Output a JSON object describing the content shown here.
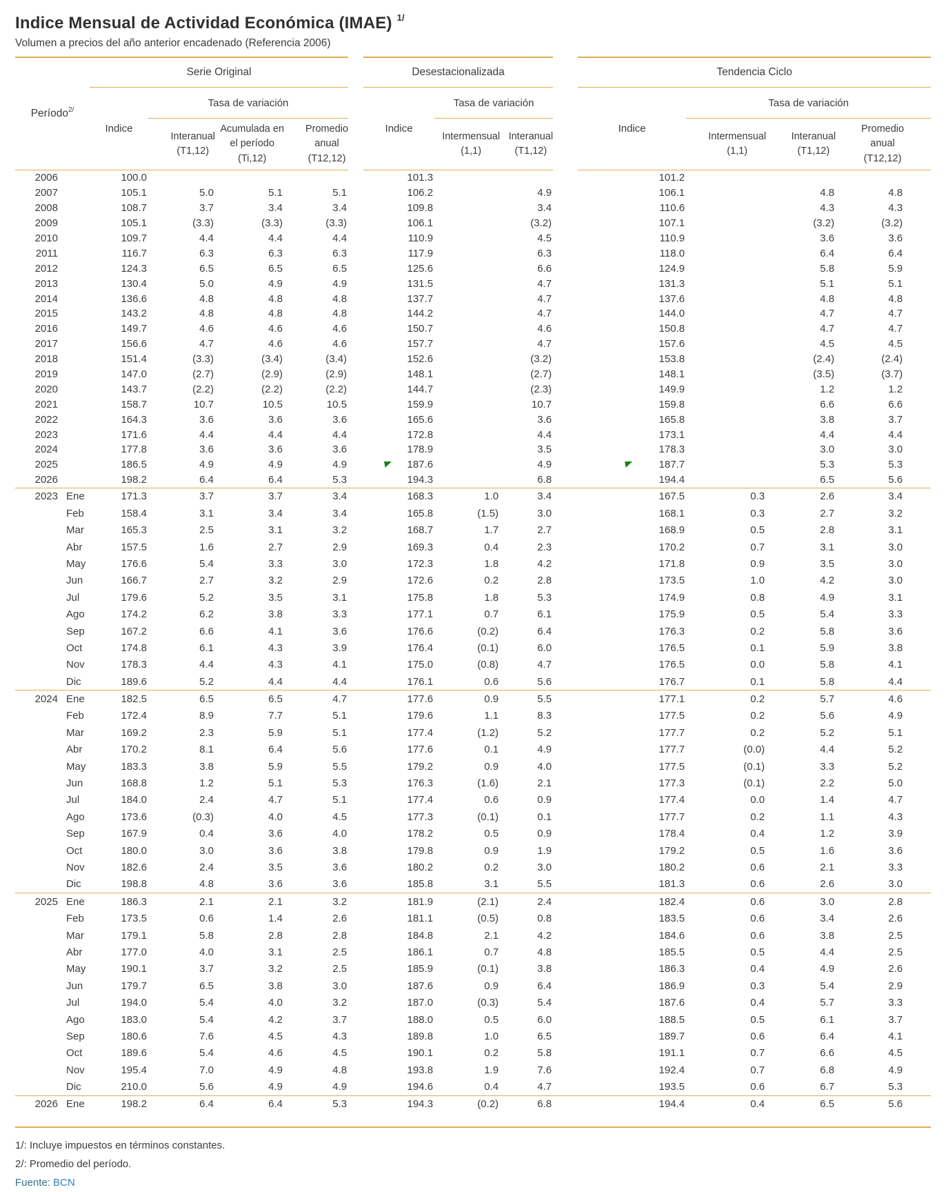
{
  "page": {
    "title": "Indice Mensual de Actividad Económica (IMAE)",
    "title_note": "1/",
    "subtitle": "Volumen a precios del año anterior encadenado (Referencia 2006)"
  },
  "colors": {
    "rule_gold": "#dfae4f",
    "text": "#3c3c3c",
    "flag_green": "#178217",
    "source_label_blue": "#31708f",
    "source_link_blue": "#2e86c1"
  },
  "table": {
    "period_header": {
      "label": "Período",
      "note": "2/"
    },
    "groups": [
      {
        "title": "Serie Original",
        "tasa": "Tasa de variación"
      },
      {
        "title": "Desestacionalizada",
        "tasa": "Tasa de variación"
      },
      {
        "title": "Tendencia Ciclo",
        "tasa": "Tasa de variación"
      }
    ],
    "columns": {
      "so_indice": "Indice",
      "so_interanual": "Interanual\n(T1,12)",
      "so_acumulada": "Acumulada en\nel período\n(Ti,12)",
      "so_promedio": "Promedio\nanual\n(T12,12)",
      "de_indice": "Indice",
      "de_intermensual": "Intermensual\n(1,1)",
      "de_interanual": "Interanual\n(T1,12)",
      "tc_indice": "Indice",
      "tc_intermensual": "Intermensual\n(1,1)",
      "tc_interanual": "Interanual\n(T1,12)",
      "tc_promedio": "Promedio\nanual\n(T12,12)"
    },
    "annual_rows": [
      {
        "year": "2006",
        "month": "",
        "values": [
          "100.0",
          "",
          "",
          "",
          "101.3",
          "",
          "",
          "101.2",
          "",
          "",
          ""
        ]
      },
      {
        "year": "2007",
        "month": "",
        "values": [
          "105.1",
          "5.0",
          "5.1",
          "5.1",
          "106.2",
          "",
          "4.9",
          "106.1",
          "",
          "4.8",
          "4.8"
        ]
      },
      {
        "year": "2008",
        "month": "",
        "values": [
          "108.7",
          "3.7",
          "3.4",
          "3.4",
          "109.8",
          "",
          "3.4",
          "110.6",
          "",
          "4.3",
          "4.3"
        ]
      },
      {
        "year": "2009",
        "month": "",
        "values": [
          "105.1",
          "(3.3)",
          "(3.3)",
          "(3.3)",
          "106.1",
          "",
          "(3.2)",
          "107.1",
          "",
          "(3.2)",
          "(3.2)"
        ]
      },
      {
        "year": "2010",
        "month": "",
        "values": [
          "109.7",
          "4.4",
          "4.4",
          "4.4",
          "110.9",
          "",
          "4.5",
          "110.9",
          "",
          "3.6",
          "3.6"
        ]
      },
      {
        "year": "2011",
        "month": "",
        "values": [
          "116.7",
          "6.3",
          "6.3",
          "6.3",
          "117.9",
          "",
          "6.3",
          "118.0",
          "",
          "6.4",
          "6.4"
        ]
      },
      {
        "year": "2012",
        "month": "",
        "values": [
          "124.3",
          "6.5",
          "6.5",
          "6.5",
          "125.6",
          "",
          "6.6",
          "124.9",
          "",
          "5.8",
          "5.9"
        ]
      },
      {
        "year": "2013",
        "month": "",
        "values": [
          "130.4",
          "5.0",
          "4.9",
          "4.9",
          "131.5",
          "",
          "4.7",
          "131.3",
          "",
          "5.1",
          "5.1"
        ]
      },
      {
        "year": "2014",
        "month": "",
        "values": [
          "136.6",
          "4.8",
          "4.8",
          "4.8",
          "137.7",
          "",
          "4.7",
          "137.6",
          "",
          "4.8",
          "4.8"
        ]
      },
      {
        "year": "2015",
        "month": "",
        "values": [
          "143.2",
          "4.8",
          "4.8",
          "4.8",
          "144.2",
          "",
          "4.7",
          "144.0",
          "",
          "4.7",
          "4.7"
        ]
      },
      {
        "year": "2016",
        "month": "",
        "values": [
          "149.7",
          "4.6",
          "4.6",
          "4.6",
          "150.7",
          "",
          "4.6",
          "150.8",
          "",
          "4.7",
          "4.7"
        ]
      },
      {
        "year": "2017",
        "month": "",
        "values": [
          "156.6",
          "4.7",
          "4.6",
          "4.6",
          "157.7",
          "",
          "4.7",
          "157.6",
          "",
          "4.5",
          "4.5"
        ]
      },
      {
        "year": "2018",
        "month": "",
        "values": [
          "151.4",
          "(3.3)",
          "(3.4)",
          "(3.4)",
          "152.6",
          "",
          "(3.2)",
          "153.8",
          "",
          "(2.4)",
          "(2.4)"
        ]
      },
      {
        "year": "2019",
        "month": "",
        "values": [
          "147.0",
          "(2.7)",
          "(2.9)",
          "(2.9)",
          "148.1",
          "",
          "(2.7)",
          "148.1",
          "",
          "(3.5)",
          "(3.7)"
        ]
      },
      {
        "year": "2020",
        "month": "",
        "values": [
          "143.7",
          "(2.2)",
          "(2.2)",
          "(2.2)",
          "144.7",
          "",
          "(2.3)",
          "149.9",
          "",
          "1.2",
          "1.2"
        ]
      },
      {
        "year": "2021",
        "month": "",
        "values": [
          "158.7",
          "10.7",
          "10.5",
          "10.5",
          "159.9",
          "",
          "10.7",
          "159.8",
          "",
          "6.6",
          "6.6"
        ]
      },
      {
        "year": "2022",
        "month": "",
        "values": [
          "164.3",
          "3.6",
          "3.6",
          "3.6",
          "165.6",
          "",
          "3.6",
          "165.8",
          "",
          "3.8",
          "3.7"
        ]
      },
      {
        "year": "2023",
        "month": "",
        "values": [
          "171.6",
          "4.4",
          "4.4",
          "4.4",
          "172.8",
          "",
          "4.4",
          "173.1",
          "",
          "4.4",
          "4.4"
        ]
      },
      {
        "year": "2024",
        "month": "",
        "values": [
          "177.8",
          "3.6",
          "3.6",
          "3.6",
          "178.9",
          "",
          "3.5",
          "178.3",
          "",
          "3.0",
          "3.0"
        ]
      },
      {
        "year": "2025",
        "month": "",
        "values": [
          "186.5",
          "4.9",
          "4.9",
          "4.9",
          "187.6",
          "",
          "4.9",
          "187.7",
          "",
          "5.3",
          "5.3"
        ],
        "flags": [
          4,
          7
        ]
      },
      {
        "year": "2026",
        "month": "",
        "values": [
          "198.2",
          "6.4",
          "6.4",
          "5.3",
          "194.3",
          "",
          "6.8",
          "194.4",
          "",
          "6.5",
          "5.6"
        ]
      }
    ],
    "monthly_rows": [
      {
        "year": "2023",
        "month": "Ene",
        "sep": true,
        "values": [
          "171.3",
          "3.7",
          "3.7",
          "3.4",
          "168.3",
          "1.0",
          "3.4",
          "167.5",
          "0.3",
          "2.6",
          "3.4"
        ]
      },
      {
        "year": "",
        "month": "Feb",
        "values": [
          "158.4",
          "3.1",
          "3.4",
          "3.4",
          "165.8",
          "(1.5)",
          "3.0",
          "168.1",
          "0.3",
          "2.7",
          "3.2"
        ]
      },
      {
        "year": "",
        "month": "Mar",
        "values": [
          "165.3",
          "2.5",
          "3.1",
          "3.2",
          "168.7",
          "1.7",
          "2.7",
          "168.9",
          "0.5",
          "2.8",
          "3.1"
        ]
      },
      {
        "year": "",
        "month": "Abr",
        "values": [
          "157.5",
          "1.6",
          "2.7",
          "2.9",
          "169.3",
          "0.4",
          "2.3",
          "170.2",
          "0.7",
          "3.1",
          "3.0"
        ]
      },
      {
        "year": "",
        "month": "May",
        "values": [
          "176.6",
          "5.4",
          "3.3",
          "3.0",
          "172.3",
          "1.8",
          "4.2",
          "171.8",
          "0.9",
          "3.5",
          "3.0"
        ]
      },
      {
        "year": "",
        "month": "Jun",
        "values": [
          "166.7",
          "2.7",
          "3.2",
          "2.9",
          "172.6",
          "0.2",
          "2.8",
          "173.5",
          "1.0",
          "4.2",
          "3.0"
        ]
      },
      {
        "year": "",
        "month": "Jul",
        "values": [
          "179.6",
          "5.2",
          "3.5",
          "3.1",
          "175.8",
          "1.8",
          "5.3",
          "174.9",
          "0.8",
          "4.9",
          "3.1"
        ]
      },
      {
        "year": "",
        "month": "Ago",
        "values": [
          "174.2",
          "6.2",
          "3.8",
          "3.3",
          "177.1",
          "0.7",
          "6.1",
          "175.9",
          "0.5",
          "5.4",
          "3.3"
        ]
      },
      {
        "year": "",
        "month": "Sep",
        "values": [
          "167.2",
          "6.6",
          "4.1",
          "3.6",
          "176.6",
          "(0.2)",
          "6.4",
          "176.3",
          "0.2",
          "5.8",
          "3.6"
        ]
      },
      {
        "year": "",
        "month": "Oct",
        "values": [
          "174.8",
          "6.1",
          "4.3",
          "3.9",
          "176.4",
          "(0.1)",
          "6.0",
          "176.5",
          "0.1",
          "5.9",
          "3.8"
        ]
      },
      {
        "year": "",
        "month": "Nov",
        "values": [
          "178.3",
          "4.4",
          "4.3",
          "4.1",
          "175.0",
          "(0.8)",
          "4.7",
          "176.5",
          "0.0",
          "5.8",
          "4.1"
        ]
      },
      {
        "year": "",
        "month": "Dic",
        "values": [
          "189.6",
          "5.2",
          "4.4",
          "4.4",
          "176.1",
          "0.6",
          "5.6",
          "176.7",
          "0.1",
          "5.8",
          "4.4"
        ]
      },
      {
        "year": "2024",
        "month": "Ene",
        "sep": true,
        "values": [
          "182.5",
          "6.5",
          "6.5",
          "4.7",
          "177.6",
          "0.9",
          "5.5",
          "177.1",
          "0.2",
          "5.7",
          "4.6"
        ]
      },
      {
        "year": "",
        "month": "Feb",
        "values": [
          "172.4",
          "8.9",
          "7.7",
          "5.1",
          "179.6",
          "1.1",
          "8.3",
          "177.5",
          "0.2",
          "5.6",
          "4.9"
        ]
      },
      {
        "year": "",
        "month": "Mar",
        "values": [
          "169.2",
          "2.3",
          "5.9",
          "5.1",
          "177.4",
          "(1.2)",
          "5.2",
          "177.7",
          "0.2",
          "5.2",
          "5.1"
        ]
      },
      {
        "year": "",
        "month": "Abr",
        "values": [
          "170.2",
          "8.1",
          "6.4",
          "5.6",
          "177.6",
          "0.1",
          "4.9",
          "177.7",
          "(0.0)",
          "4.4",
          "5.2"
        ]
      },
      {
        "year": "",
        "month": "May",
        "values": [
          "183.3",
          "3.8",
          "5.9",
          "5.5",
          "179.2",
          "0.9",
          "4.0",
          "177.5",
          "(0.1)",
          "3.3",
          "5.2"
        ]
      },
      {
        "year": "",
        "month": "Jun",
        "values": [
          "168.8",
          "1.2",
          "5.1",
          "5.3",
          "176.3",
          "(1.6)",
          "2.1",
          "177.3",
          "(0.1)",
          "2.2",
          "5.0"
        ]
      },
      {
        "year": "",
        "month": "Jul",
        "values": [
          "184.0",
          "2.4",
          "4.7",
          "5.1",
          "177.4",
          "0.6",
          "0.9",
          "177.4",
          "0.0",
          "1.4",
          "4.7"
        ]
      },
      {
        "year": "",
        "month": "Ago",
        "values": [
          "173.6",
          "(0.3)",
          "4.0",
          "4.5",
          "177.3",
          "(0.1)",
          "0.1",
          "177.7",
          "0.2",
          "1.1",
          "4.3"
        ]
      },
      {
        "year": "",
        "month": "Sep",
        "values": [
          "167.9",
          "0.4",
          "3.6",
          "4.0",
          "178.2",
          "0.5",
          "0.9",
          "178.4",
          "0.4",
          "1.2",
          "3.9"
        ]
      },
      {
        "year": "",
        "month": "Oct",
        "values": [
          "180.0",
          "3.0",
          "3.6",
          "3.8",
          "179.8",
          "0.9",
          "1.9",
          "179.2",
          "0.5",
          "1.6",
          "3.6"
        ]
      },
      {
        "year": "",
        "month": "Nov",
        "values": [
          "182.6",
          "2.4",
          "3.5",
          "3.6",
          "180.2",
          "0.2",
          "3.0",
          "180.2",
          "0.6",
          "2.1",
          "3.3"
        ]
      },
      {
        "year": "",
        "month": "Dic",
        "values": [
          "198.8",
          "4.8",
          "3.6",
          "3.6",
          "185.8",
          "3.1",
          "5.5",
          "181.3",
          "0.6",
          "2.6",
          "3.0"
        ]
      },
      {
        "year": "2025",
        "month": "Ene",
        "sep": true,
        "values": [
          "186.3",
          "2.1",
          "2.1",
          "3.2",
          "181.9",
          "(2.1)",
          "2.4",
          "182.4",
          "0.6",
          "3.0",
          "2.8"
        ]
      },
      {
        "year": "",
        "month": "Feb",
        "values": [
          "173.5",
          "0.6",
          "1.4",
          "2.6",
          "181.1",
          "(0.5)",
          "0.8",
          "183.5",
          "0.6",
          "3.4",
          "2.6"
        ]
      },
      {
        "year": "",
        "month": "Mar",
        "values": [
          "179.1",
          "5.8",
          "2.8",
          "2.8",
          "184.8",
          "2.1",
          "4.2",
          "184.6",
          "0.6",
          "3.8",
          "2.5"
        ]
      },
      {
        "year": "",
        "month": "Abr",
        "values": [
          "177.0",
          "4.0",
          "3.1",
          "2.5",
          "186.1",
          "0.7",
          "4.8",
          "185.5",
          "0.5",
          "4.4",
          "2.5"
        ]
      },
      {
        "year": "",
        "month": "May",
        "values": [
          "190.1",
          "3.7",
          "3.2",
          "2.5",
          "185.9",
          "(0.1)",
          "3.8",
          "186.3",
          "0.4",
          "4.9",
          "2.6"
        ]
      },
      {
        "year": "",
        "month": "Jun",
        "values": [
          "179.7",
          "6.5",
          "3.8",
          "3.0",
          "187.6",
          "0.9",
          "6.4",
          "186.9",
          "0.3",
          "5.4",
          "2.9"
        ]
      },
      {
        "year": "",
        "month": "Jul",
        "values": [
          "194.0",
          "5.4",
          "4.0",
          "3.2",
          "187.0",
          "(0.3)",
          "5.4",
          "187.6",
          "0.4",
          "5.7",
          "3.3"
        ]
      },
      {
        "year": "",
        "month": "Ago",
        "values": [
          "183.0",
          "5.4",
          "4.2",
          "3.7",
          "188.0",
          "0.5",
          "6.0",
          "188.5",
          "0.5",
          "6.1",
          "3.7"
        ]
      },
      {
        "year": "",
        "month": "Sep",
        "values": [
          "180.6",
          "7.6",
          "4.5",
          "4.3",
          "189.8",
          "1.0",
          "6.5",
          "189.7",
          "0.6",
          "6.4",
          "4.1"
        ]
      },
      {
        "year": "",
        "month": "Oct",
        "values": [
          "189.6",
          "5.4",
          "4.6",
          "4.5",
          "190.1",
          "0.2",
          "5.8",
          "191.1",
          "0.7",
          "6.6",
          "4.5"
        ]
      },
      {
        "year": "",
        "month": "Nov",
        "values": [
          "195.4",
          "7.0",
          "4.9",
          "4.8",
          "193.8",
          "1.9",
          "7.6",
          "192.4",
          "0.7",
          "6.8",
          "4.9"
        ]
      },
      {
        "year": "",
        "month": "Dic",
        "values": [
          "210.0",
          "5.6",
          "4.9",
          "4.9",
          "194.6",
          "0.4",
          "4.7",
          "193.5",
          "0.6",
          "6.7",
          "5.3"
        ]
      },
      {
        "year": "2026",
        "month": "Ene",
        "sep": true,
        "values": [
          "198.2",
          "6.4",
          "6.4",
          "5.3",
          "194.3",
          "(0.2)",
          "6.8",
          "194.4",
          "0.4",
          "6.5",
          "5.6"
        ]
      }
    ]
  },
  "footnotes": [
    "1/: Incluye impuestos en términos constantes.",
    "2/: Promedio del período."
  ],
  "source": {
    "label": "Fuente:",
    "value": "BCN"
  }
}
